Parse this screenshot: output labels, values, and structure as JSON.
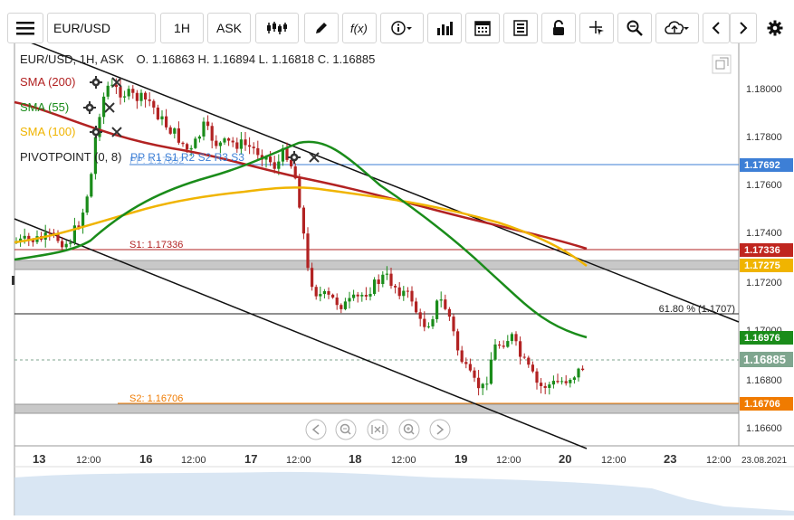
{
  "toolbar": {
    "symbol": "EUR/USD",
    "timeframe": "1H",
    "price_type": "ASK"
  },
  "chart": {
    "header": "EUR/USD, 1H, ASK",
    "ohlc": "O. 1.16863 H. 1.16894 L. 1.16818 C. 1.16885",
    "indicators": [
      {
        "label": "SMA (200)",
        "color": "#b22222"
      },
      {
        "label": "SMA (55)",
        "color": "#1a8c1a"
      },
      {
        "label": "SMA (100)",
        "color": "#f0b400"
      },
      {
        "label": "PIVOTPOINT (0, 8)",
        "color": "#222222"
      }
    ],
    "pivot_inline": "PP  R1  S1  R2  S2  R3  S3",
    "pivot_ghost": "PP: 1.17692",
    "s1_label": "S1: 1.17336",
    "s2_label": "S2: 1.16706",
    "fib_label": "61.80 % (1.1707)",
    "price_tags": [
      {
        "text": "1.17692",
        "bg": "#3d7fd6"
      },
      {
        "text": "1.17336",
        "bg": "#c0261f"
      },
      {
        "text": "1.17275",
        "bg": "#f0b400"
      },
      {
        "text": "1.16976",
        "bg": "#1a8c1a"
      },
      {
        "text": "1.16885",
        "bg": "#7fa68f"
      },
      {
        "text": "1.16706",
        "bg": "#f07b00"
      }
    ],
    "y_ticks": [
      "1.18000",
      "1.17800",
      "1.17600",
      "1.17400",
      "1.17200",
      "1.17000",
      "1.16800",
      "1.16600"
    ],
    "x_ticks": [
      "13",
      "12:00",
      "16",
      "12:00",
      "17",
      "12:00",
      "18",
      "12:00",
      "19",
      "12:00",
      "20",
      "12:00",
      "23",
      "12:00",
      "23.08.2021"
    ]
  },
  "nav_icons": [
    "first-icon",
    "zoom-out-icon",
    "fit-icon",
    "zoom-in-icon",
    "last-icon"
  ],
  "colors": {
    "sma200": "#b22222",
    "sma55": "#1a8c1a",
    "sma100": "#f0b400",
    "candle_up": "#1a8c1a",
    "candle_down": "#b22222",
    "pp_line": "#3d7fd6",
    "channel": "#111111",
    "band": "#c8c8c8",
    "volume": "#c9dcee"
  }
}
